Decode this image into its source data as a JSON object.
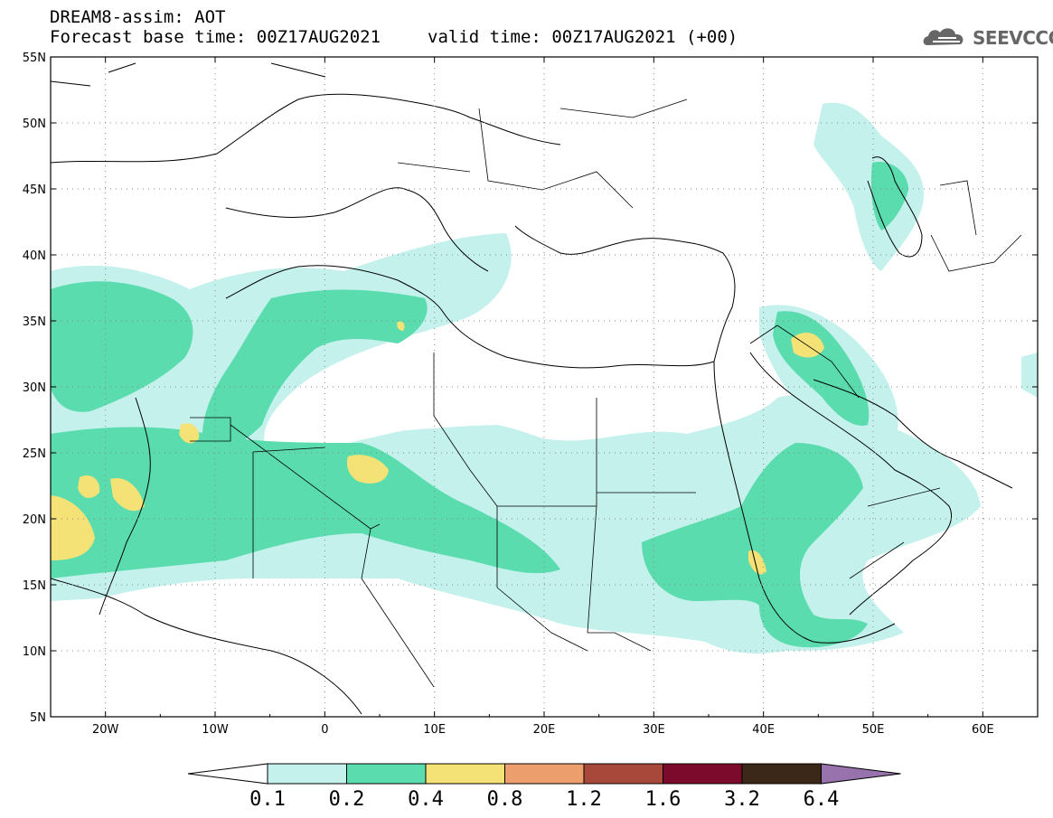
{
  "header": {
    "title": "DREAM8-assim: AOT",
    "base_time": "Forecast base time: 00Z17AUG2021",
    "valid_time": "valid time: 00Z17AUG2021 (+00)",
    "logo": "SEEVCCC"
  },
  "map": {
    "lon_range": [
      -25,
      65
    ],
    "lat_range": [
      5,
      55
    ],
    "lat_ticks": [
      "55N",
      "50N",
      "45N",
      "40N",
      "35N",
      "30N",
      "25N",
      "20N",
      "15N",
      "10N",
      "5N"
    ],
    "lon_ticks": [
      "20W",
      "10W",
      "0",
      "10E",
      "20E",
      "30E",
      "40E",
      "50E",
      "60E"
    ]
  },
  "colorbar": {
    "colors": [
      "#ffffff",
      "#c4f1ec",
      "#5bdcae",
      "#f5e276",
      "#ec9e6d",
      "#a8483a",
      "#7c0a2c",
      "#3c2818",
      "#9872ac"
    ],
    "labels": [
      "0.1",
      "0.2",
      "0.4",
      "0.8",
      "1.2",
      "1.6",
      "3.2",
      "6.4"
    ]
  }
}
